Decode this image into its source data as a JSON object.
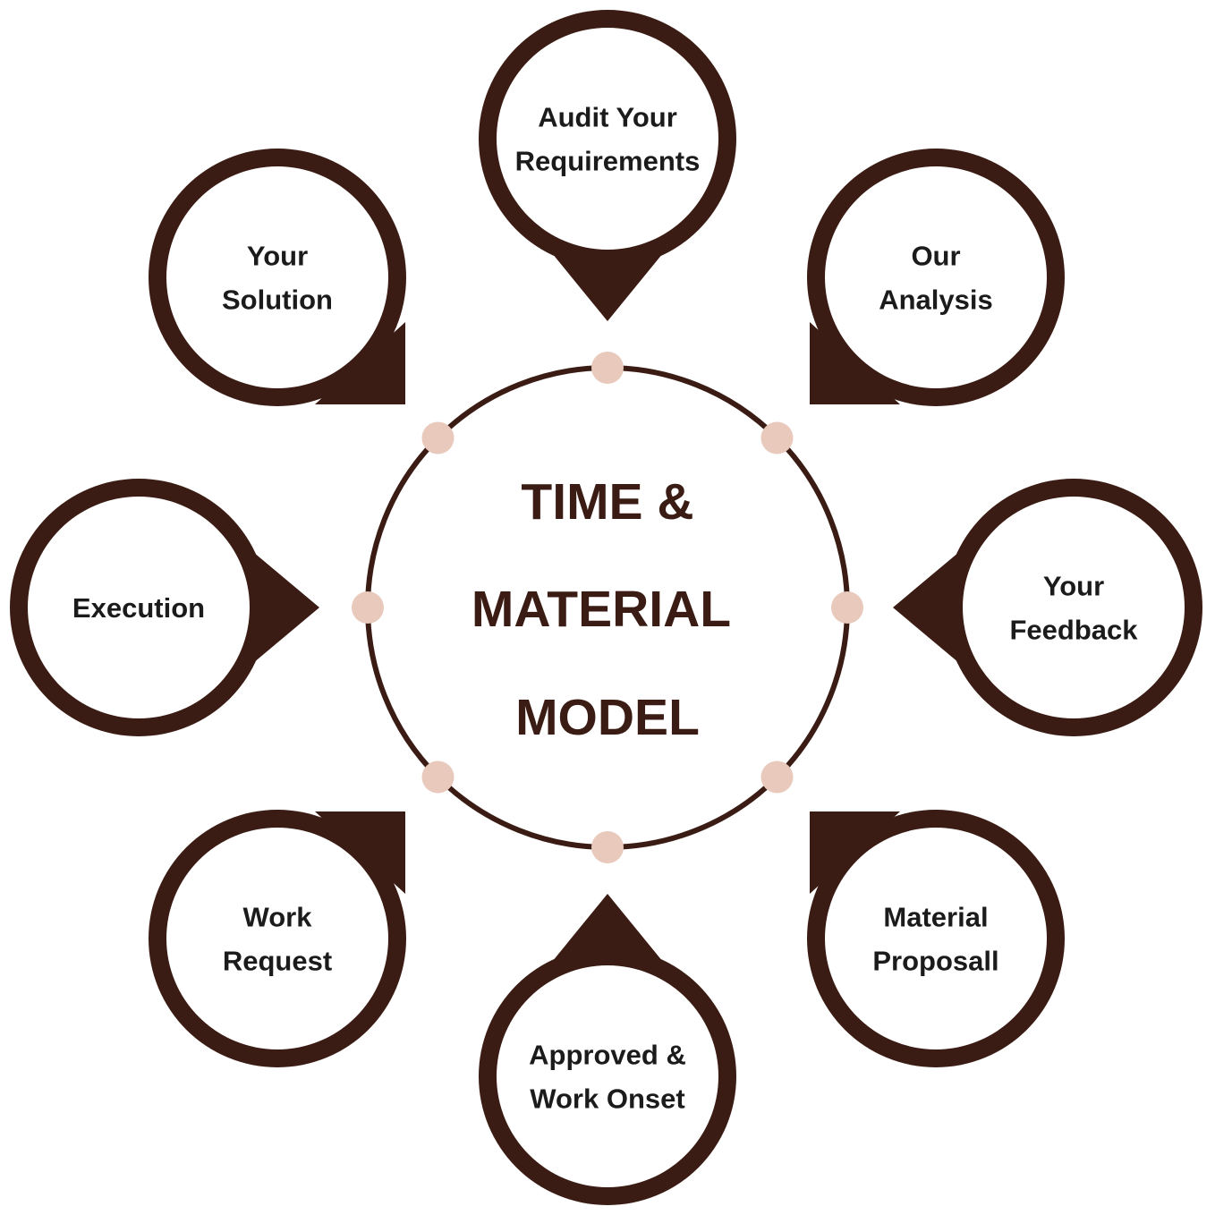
{
  "colors": {
    "primary": "#3a1c14",
    "dot": "#e8c9bc",
    "background": "#ffffff",
    "text": "#1b1b1b"
  },
  "center": {
    "lines": [
      "TIME &",
      "MATERIAL",
      "MODEL"
    ]
  },
  "nodes": [
    {
      "id": "audit",
      "lines": [
        "Audit Your",
        "Requirements"
      ],
      "pointer": "down"
    },
    {
      "id": "analysis",
      "lines": [
        "Our",
        "Analysis"
      ],
      "pointer": "bottom-left"
    },
    {
      "id": "feedback",
      "lines": [
        "Your",
        "Feedback"
      ],
      "pointer": "left"
    },
    {
      "id": "proposal",
      "lines": [
        "Material",
        "Proposall"
      ],
      "pointer": "top-left"
    },
    {
      "id": "onset",
      "lines": [
        "Approved &",
        "Work Onset"
      ],
      "pointer": "up"
    },
    {
      "id": "request",
      "lines": [
        "Work",
        "Request"
      ],
      "pointer": "top-right"
    },
    {
      "id": "execution",
      "lines": [
        "Execution"
      ],
      "pointer": "right"
    },
    {
      "id": "solution",
      "lines": [
        "Your",
        "Solution"
      ],
      "pointer": "bottom-right"
    }
  ]
}
